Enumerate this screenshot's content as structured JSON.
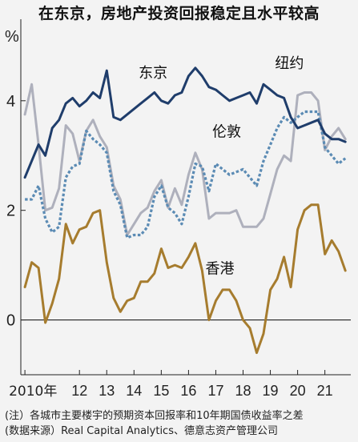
{
  "title": "在东京，房地产投资回报稳定且水平较高",
  "notes": {
    "line1": "(注）各城市主要楼宇的预期资本回报率和10年期国债收益率之差",
    "line2": "(数据来源）Real Capital Analytics、德意志资产管理公司"
  },
  "chart_data": {
    "type": "line",
    "yunit": "%",
    "ylim": [
      -1.0,
      5.4
    ],
    "yticks": [
      0,
      2,
      4
    ],
    "xlim": [
      2009.85,
      2021.95
    ],
    "xticks": [
      {
        "x": 2010,
        "label": "2010年"
      },
      {
        "x": 2012,
        "label": "12"
      },
      {
        "x": 2013,
        "label": "13"
      },
      {
        "x": 2014,
        "label": "14"
      },
      {
        "x": 2015,
        "label": "15"
      },
      {
        "x": 2016,
        "label": "16"
      },
      {
        "x": 2017,
        "label": "17"
      },
      {
        "x": 2018,
        "label": "18"
      },
      {
        "x": 2019,
        "label": "19"
      },
      {
        "x": 2020,
        "label": "20"
      },
      {
        "x": 2021,
        "label": "21"
      }
    ],
    "series": [
      {
        "name": "东京",
        "color": "#1f3d6b",
        "dash": "solid",
        "x": [
          2010.0,
          2010.25,
          2010.5,
          2010.75,
          2011.0,
          2011.25,
          2011.5,
          2011.75,
          2012.0,
          2012.25,
          2012.5,
          2012.75,
          2013.0,
          2013.25,
          2013.5,
          2013.75,
          2014.0,
          2014.25,
          2014.5,
          2014.75,
          2015.0,
          2015.25,
          2015.5,
          2015.75,
          2016.0,
          2016.25,
          2016.5,
          2016.75,
          2017.0,
          2017.25,
          2017.5,
          2017.75,
          2018.0,
          2018.25,
          2018.5,
          2018.75,
          2019.0,
          2019.25,
          2019.5,
          2019.75,
          2020.0,
          2020.25,
          2020.5,
          2020.75,
          2021.0,
          2021.25,
          2021.5,
          2021.75
        ],
        "y": [
          2.6,
          2.9,
          3.2,
          3.0,
          3.5,
          3.65,
          3.95,
          4.05,
          3.9,
          4.0,
          4.15,
          4.05,
          4.55,
          3.7,
          3.65,
          3.75,
          3.85,
          3.95,
          4.05,
          4.15,
          4.0,
          3.95,
          4.1,
          4.15,
          4.45,
          4.6,
          4.45,
          4.25,
          4.2,
          4.1,
          4.0,
          4.05,
          4.1,
          4.15,
          3.95,
          4.3,
          4.2,
          4.1,
          4.05,
          3.7,
          3.5,
          3.55,
          3.6,
          3.65,
          3.4,
          3.3,
          3.3,
          3.25
        ]
      },
      {
        "name": "纽约",
        "color": "#aeb0bc",
        "dash": "solid",
        "x": [
          2010.0,
          2010.25,
          2010.5,
          2010.75,
          2011.0,
          2011.25,
          2011.5,
          2011.75,
          2012.0,
          2012.25,
          2012.5,
          2012.75,
          2013.0,
          2013.25,
          2013.5,
          2013.75,
          2014.0,
          2014.25,
          2014.5,
          2014.75,
          2015.0,
          2015.25,
          2015.5,
          2015.75,
          2016.0,
          2016.25,
          2016.5,
          2016.75,
          2017.0,
          2017.25,
          2017.5,
          2017.75,
          2018.0,
          2018.25,
          2018.5,
          2018.75,
          2019.0,
          2019.25,
          2019.5,
          2019.75,
          2020.0,
          2020.25,
          2020.5,
          2020.75,
          2021.0,
          2021.25,
          2021.5,
          2021.75
        ],
        "y": [
          3.75,
          4.3,
          3.2,
          2.0,
          2.05,
          2.4,
          3.55,
          3.4,
          2.9,
          3.45,
          3.65,
          3.35,
          3.15,
          2.45,
          2.2,
          1.55,
          1.75,
          1.95,
          2.05,
          2.35,
          2.55,
          2.05,
          2.4,
          2.1,
          2.65,
          3.05,
          2.75,
          1.85,
          1.95,
          1.95,
          1.95,
          2.0,
          1.7,
          1.7,
          1.7,
          1.85,
          2.3,
          2.75,
          3.0,
          2.9,
          4.1,
          4.15,
          4.15,
          4.0,
          3.1,
          3.35,
          3.5,
          3.3
        ]
      },
      {
        "name": "伦敦",
        "color": "#5b8bb4",
        "dash": "dotted",
        "x": [
          2010.0,
          2010.25,
          2010.5,
          2010.75,
          2011.0,
          2011.25,
          2011.5,
          2011.75,
          2012.0,
          2012.25,
          2012.5,
          2012.75,
          2013.0,
          2013.25,
          2013.5,
          2013.75,
          2014.0,
          2014.25,
          2014.5,
          2014.75,
          2015.0,
          2015.25,
          2015.5,
          2015.75,
          2016.0,
          2016.25,
          2016.5,
          2016.75,
          2017.0,
          2017.25,
          2017.5,
          2017.75,
          2018.0,
          2018.25,
          2018.5,
          2018.75,
          2019.0,
          2019.25,
          2019.5,
          2019.75,
          2020.0,
          2020.25,
          2020.5,
          2020.75,
          2021.0,
          2021.25,
          2021.5,
          2021.75
        ],
        "y": [
          2.2,
          2.2,
          2.45,
          1.85,
          1.6,
          1.7,
          2.6,
          2.8,
          2.85,
          3.45,
          3.3,
          3.2,
          3.05,
          2.35,
          2.1,
          1.5,
          1.55,
          1.55,
          1.7,
          2.25,
          2.45,
          2.05,
          1.95,
          1.75,
          2.25,
          2.85,
          2.8,
          2.35,
          2.85,
          2.75,
          2.65,
          2.7,
          2.75,
          2.6,
          2.45,
          2.9,
          3.2,
          3.5,
          3.7,
          3.6,
          3.7,
          3.8,
          3.8,
          3.8,
          3.15,
          3.0,
          2.85,
          2.95
        ]
      },
      {
        "name": "香港",
        "color": "#a67c2e",
        "dash": "solid",
        "x": [
          2010.0,
          2010.25,
          2010.5,
          2010.75,
          2011.0,
          2011.25,
          2011.5,
          2011.75,
          2012.0,
          2012.25,
          2012.5,
          2012.75,
          2013.0,
          2013.25,
          2013.5,
          2013.75,
          2014.0,
          2014.25,
          2014.5,
          2014.75,
          2015.0,
          2015.25,
          2015.5,
          2015.75,
          2016.0,
          2016.25,
          2016.5,
          2016.75,
          2017.0,
          2017.25,
          2017.5,
          2017.75,
          2018.0,
          2018.25,
          2018.5,
          2018.75,
          2019.0,
          2019.25,
          2019.5,
          2019.75,
          2020.0,
          2020.25,
          2020.5,
          2020.75,
          2021.0,
          2021.25,
          2021.5,
          2021.75
        ],
        "y": [
          0.6,
          1.05,
          0.95,
          -0.05,
          0.3,
          0.75,
          1.75,
          1.4,
          1.65,
          1.7,
          1.95,
          2.0,
          1.05,
          0.4,
          0.15,
          0.35,
          0.4,
          0.7,
          0.7,
          0.85,
          1.3,
          0.95,
          1.0,
          0.95,
          1.15,
          1.4,
          0.9,
          0.0,
          0.35,
          0.55,
          0.55,
          0.35,
          0.0,
          -0.15,
          -0.6,
          -0.25,
          0.55,
          0.75,
          1.15,
          0.6,
          1.65,
          2.0,
          2.1,
          2.1,
          1.2,
          1.45,
          1.25,
          0.9
        ]
      }
    ],
    "labels": [
      {
        "series": "东京",
        "x": 2014.7,
        "y": 4.42
      },
      {
        "series": "纽约",
        "x": 2019.7,
        "y": 4.6
      },
      {
        "series": "伦敦",
        "x": 2017.4,
        "y": 3.35
      },
      {
        "series": "香港",
        "x": 2017.15,
        "y": 0.85
      }
    ]
  }
}
